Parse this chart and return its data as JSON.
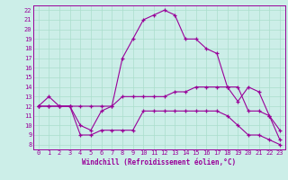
{
  "title": "Windchill (Refroidissement éolien,°C)",
  "background_color": "#cceee8",
  "grid_color": "#aaddcc",
  "line_color": "#990099",
  "xlim": [
    -0.5,
    23.5
  ],
  "ylim": [
    7.5,
    22.5
  ],
  "xticks": [
    0,
    1,
    2,
    3,
    4,
    5,
    6,
    7,
    8,
    9,
    10,
    11,
    12,
    13,
    14,
    15,
    16,
    17,
    18,
    19,
    20,
    21,
    22,
    23
  ],
  "yticks": [
    8,
    9,
    10,
    11,
    12,
    13,
    14,
    15,
    16,
    17,
    18,
    19,
    20,
    21,
    22
  ],
  "line1_x": [
    0,
    1,
    2,
    3,
    4,
    5,
    6,
    7,
    8,
    9,
    10,
    11,
    12,
    13,
    14,
    15,
    16,
    17,
    18,
    19,
    20,
    21,
    22,
    23
  ],
  "line1_y": [
    12,
    13,
    12,
    12,
    10,
    9.5,
    11.5,
    12,
    17,
    19,
    21,
    21.5,
    22,
    21.5,
    19,
    19,
    18,
    17.5,
    14,
    12.5,
    14,
    13.5,
    11,
    9.5
  ],
  "line2_x": [
    0,
    1,
    2,
    3,
    4,
    5,
    6,
    7,
    8,
    9,
    10,
    11,
    12,
    13,
    14,
    15,
    16,
    17,
    18,
    19,
    20,
    21,
    22,
    23
  ],
  "line2_y": [
    12,
    12,
    12,
    12,
    12,
    12,
    12,
    12,
    13,
    13,
    13,
    13,
    13,
    13.5,
    13.5,
    14,
    14,
    14,
    14,
    14,
    11.5,
    11.5,
    11,
    8.5
  ],
  "line3_x": [
    0,
    1,
    2,
    3,
    4,
    5,
    6,
    7,
    8,
    9,
    10,
    11,
    12,
    13,
    14,
    15,
    16,
    17,
    18,
    19,
    20,
    21,
    22,
    23
  ],
  "line3_y": [
    12,
    12,
    12,
    12,
    9,
    9,
    9.5,
    9.5,
    9.5,
    9.5,
    11.5,
    11.5,
    11.5,
    11.5,
    11.5,
    11.5,
    11.5,
    11.5,
    11,
    10,
    9,
    9,
    8.5,
    8
  ]
}
